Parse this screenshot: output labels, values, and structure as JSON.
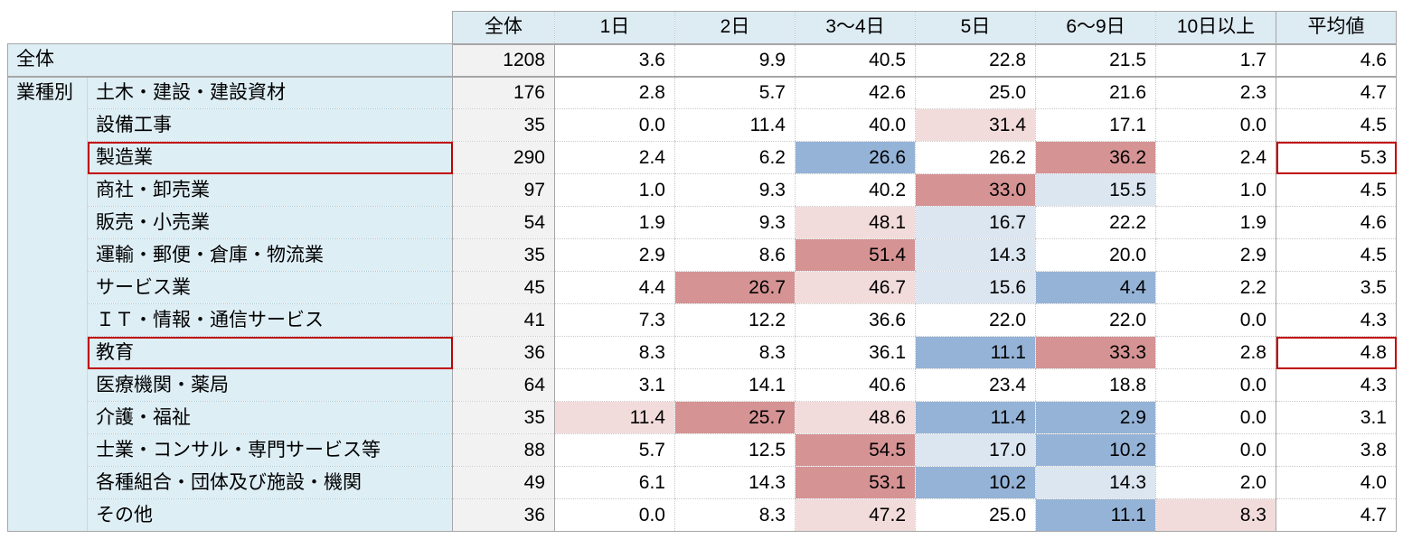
{
  "table": {
    "group_label": "業種別",
    "columns": [
      "全体",
      "1日",
      "2日",
      "3〜4日",
      "5日",
      "6〜9日",
      "10日以上",
      "平均値"
    ],
    "rows": [
      {
        "label": "全体",
        "total_row": true,
        "boxed": false,
        "values": [
          "1208",
          "3.6",
          "9.9",
          "40.5",
          "22.8",
          "21.5",
          "1.7",
          "4.6"
        ],
        "heat": [
          "",
          "",
          "",
          "",
          "",
          "",
          "",
          ""
        ]
      },
      {
        "label": "土木・建設・建設資材",
        "total_row": false,
        "boxed": false,
        "values": [
          "176",
          "2.8",
          "5.7",
          "42.6",
          "25.0",
          "21.6",
          "2.3",
          "4.7"
        ],
        "heat": [
          "",
          "",
          "",
          "",
          "",
          "",
          "",
          ""
        ]
      },
      {
        "label": "設備工事",
        "total_row": false,
        "boxed": false,
        "values": [
          "35",
          "0.0",
          "11.4",
          "40.0",
          "31.4",
          "17.1",
          "0.0",
          "4.5"
        ],
        "heat": [
          "",
          "",
          "",
          "",
          "pink",
          "",
          "",
          ""
        ]
      },
      {
        "label": "製造業",
        "total_row": false,
        "boxed": true,
        "values": [
          "290",
          "2.4",
          "6.2",
          "26.6",
          "26.2",
          "36.2",
          "2.4",
          "5.3"
        ],
        "heat": [
          "",
          "",
          "",
          "blue",
          "",
          "red",
          "",
          ""
        ]
      },
      {
        "label": "商社・卸売業",
        "total_row": false,
        "boxed": false,
        "values": [
          "97",
          "1.0",
          "9.3",
          "40.2",
          "33.0",
          "15.5",
          "1.0",
          "4.5"
        ],
        "heat": [
          "",
          "",
          "",
          "",
          "red",
          "lightblue",
          "",
          ""
        ]
      },
      {
        "label": "販売・小売業",
        "total_row": false,
        "boxed": false,
        "values": [
          "54",
          "1.9",
          "9.3",
          "48.1",
          "16.7",
          "22.2",
          "1.9",
          "4.6"
        ],
        "heat": [
          "",
          "",
          "",
          "pink",
          "lightblue",
          "",
          "",
          ""
        ]
      },
      {
        "label": "運輸・郵便・倉庫・物流業",
        "total_row": false,
        "boxed": false,
        "values": [
          "35",
          "2.9",
          "8.6",
          "51.4",
          "14.3",
          "20.0",
          "2.9",
          "4.5"
        ],
        "heat": [
          "",
          "",
          "",
          "red",
          "lightblue",
          "",
          "",
          ""
        ]
      },
      {
        "label": "サービス業",
        "total_row": false,
        "boxed": false,
        "values": [
          "45",
          "4.4",
          "26.7",
          "46.7",
          "15.6",
          "4.4",
          "2.2",
          "3.5"
        ],
        "heat": [
          "",
          "",
          "red",
          "pink",
          "lightblue",
          "blue",
          "",
          ""
        ]
      },
      {
        "label": "ＩＴ・情報・通信サービス",
        "total_row": false,
        "boxed": false,
        "values": [
          "41",
          "7.3",
          "12.2",
          "36.6",
          "22.0",
          "22.0",
          "0.0",
          "4.3"
        ],
        "heat": [
          "",
          "",
          "",
          "",
          "",
          "",
          "",
          ""
        ]
      },
      {
        "label": "教育",
        "total_row": false,
        "boxed": true,
        "values": [
          "36",
          "8.3",
          "8.3",
          "36.1",
          "11.1",
          "33.3",
          "2.8",
          "4.8"
        ],
        "heat": [
          "",
          "",
          "",
          "",
          "blue",
          "red",
          "",
          ""
        ]
      },
      {
        "label": "医療機関・薬局",
        "total_row": false,
        "boxed": false,
        "values": [
          "64",
          "3.1",
          "14.1",
          "40.6",
          "23.4",
          "18.8",
          "0.0",
          "4.3"
        ],
        "heat": [
          "",
          "",
          "",
          "",
          "",
          "",
          "",
          ""
        ]
      },
      {
        "label": "介護・福祉",
        "total_row": false,
        "boxed": false,
        "values": [
          "35",
          "11.4",
          "25.7",
          "48.6",
          "11.4",
          "2.9",
          "0.0",
          "3.1"
        ],
        "heat": [
          "",
          "pink",
          "red",
          "pink",
          "blue",
          "blue",
          "",
          ""
        ]
      },
      {
        "label": "士業・コンサル・専門サービス等",
        "total_row": false,
        "boxed": false,
        "values": [
          "88",
          "5.7",
          "12.5",
          "54.5",
          "17.0",
          "10.2",
          "0.0",
          "3.8"
        ],
        "heat": [
          "",
          "",
          "",
          "red",
          "lightblue",
          "blue",
          "",
          ""
        ]
      },
      {
        "label": "各種組合・団体及び施設・機関",
        "total_row": false,
        "boxed": false,
        "values": [
          "49",
          "6.1",
          "14.3",
          "53.1",
          "10.2",
          "14.3",
          "2.0",
          "4.0"
        ],
        "heat": [
          "",
          "",
          "",
          "red",
          "blue",
          "lightblue",
          "",
          ""
        ]
      },
      {
        "label": "その他",
        "total_row": false,
        "boxed": false,
        "values": [
          "36",
          "0.0",
          "8.3",
          "47.2",
          "25.0",
          "11.1",
          "8.3",
          "4.7"
        ],
        "heat": [
          "",
          "",
          "",
          "pink",
          "",
          "blue",
          "pink",
          ""
        ]
      }
    ]
  },
  "colors": {
    "header_bg": "#DDEBF3",
    "label_bg": "#DEEEF5",
    "count_col_bg": "#F2F2F2",
    "red_box": "#C00000",
    "heat": {
      "red": "#D59394",
      "pink": "#F2DCDB",
      "blue": "#95B3D7",
      "lightblue": "#DCE6F1"
    }
  }
}
